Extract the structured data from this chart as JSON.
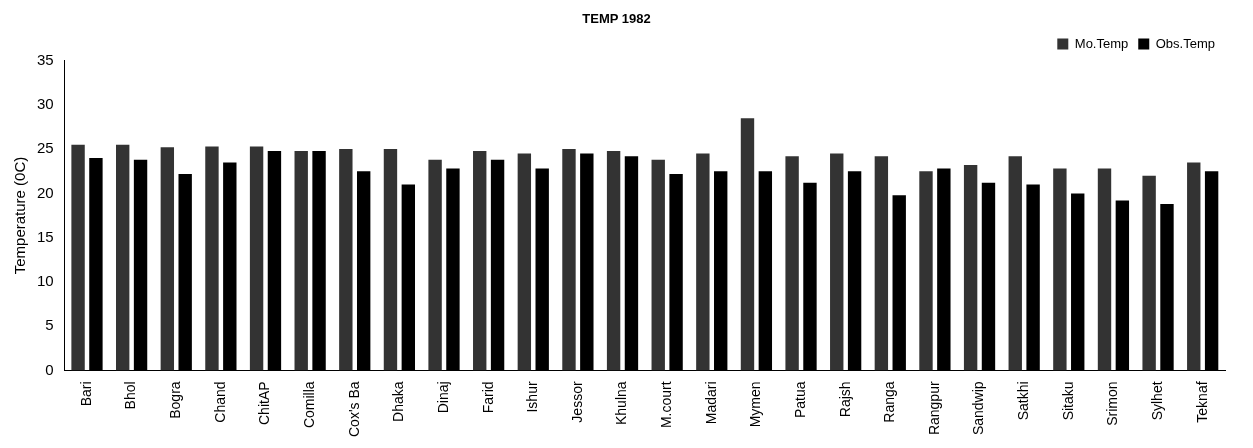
{
  "chart_data": {
    "type": "bar",
    "title": "TEMP 1982",
    "ylabel": "Temperature (0C)",
    "categories": [
      "Bari",
      "Bhol",
      "Bogra",
      "Chand",
      "ChitAP",
      "Comilla",
      "Cox's Ba",
      "Dhaka",
      "Dinaj",
      "Farid",
      "Ishur",
      "Jessor",
      "Khulna",
      "M.court",
      "Madari",
      "Mymen",
      "Patua",
      "Rajsh",
      "Ranga",
      "Rangpur",
      "Sandwip",
      "Satkhi",
      "Sitaku",
      "Srimon",
      "Sylhet",
      "Teknaf"
    ],
    "series": [
      {
        "name": "Mo.Temp",
        "color": "#333333",
        "values": [
          25.5,
          25.5,
          25.2,
          25.3,
          25.3,
          24.8,
          25,
          25,
          23.8,
          24.8,
          24.5,
          25,
          24.8,
          23.8,
          24.5,
          28.5,
          24.2,
          24.5,
          24.2,
          22.5,
          23.2,
          24.2,
          22.8,
          22.8,
          22,
          23.5
        ]
      },
      {
        "name": "Obs.Temp",
        "color": "#000000",
        "values": [
          24,
          23.8,
          22.2,
          23.5,
          24.8,
          24.8,
          22.5,
          21,
          22.8,
          23.8,
          22.8,
          24.5,
          24.2,
          22.2,
          22.5,
          22.5,
          21.2,
          22.5,
          19.8,
          22.8,
          21.2,
          21,
          20,
          19.2,
          18.8,
          22.5
        ]
      }
    ],
    "ylim": [
      0,
      35
    ],
    "yticks": [
      0,
      5,
      10,
      15,
      20,
      25,
      30,
      35
    ],
    "grid": false,
    "legend": "top right"
  }
}
